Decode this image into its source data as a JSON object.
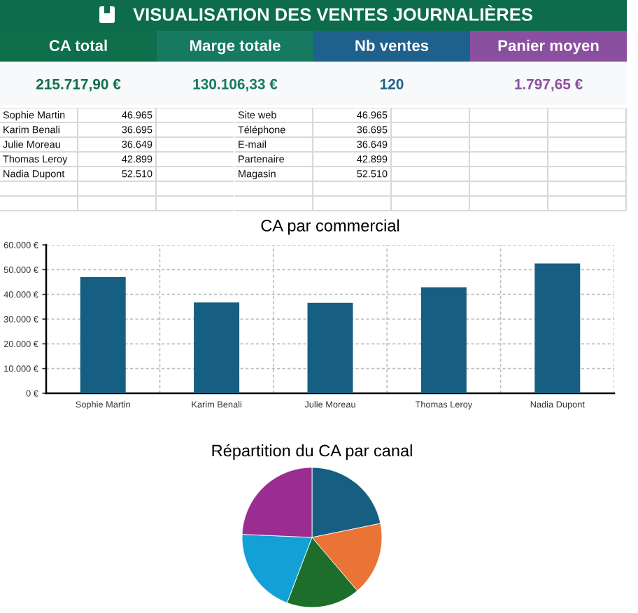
{
  "chart_data": [
    {
      "type": "other",
      "title": "VISUALISATION DES VENTES JOURNALIÈRES",
      "categories": [
        "CA total",
        "Marge totale",
        "Nb ventes",
        "Panier moyen"
      ],
      "value_labels": [
        "215.717,90 €",
        "130.106,33 €",
        "120",
        "1.797,65 €"
      ],
      "colors": [
        "#0f6e4b",
        "#157a60",
        "#1f618d",
        "#8b4fa0"
      ]
    },
    {
      "type": "other",
      "categories": [
        "Sophie Martin",
        "Karim Benali",
        "Julie Moreau",
        "Thomas Leroy",
        "Nadia Dupont"
      ],
      "value_labels": [
        "46.965",
        "36.695",
        "36.649",
        "42.899",
        "52.510"
      ]
    },
    {
      "type": "other",
      "categories": [
        "Site web",
        "Téléphone",
        "E-mail",
        "Partenaire",
        "Magasin"
      ],
      "value_labels": [
        "46.965",
        "36.695",
        "36.649",
        "42.899",
        "52.510"
      ]
    },
    {
      "type": "bar",
      "title": "CA par commercial",
      "categories": [
        "Sophie Martin",
        "Karim Benali",
        "Julie Moreau",
        "Thomas Leroy",
        "Nadia Dupont"
      ],
      "values": [
        47000,
        36700,
        36600,
        42900,
        52500
      ],
      "color": "#165f82",
      "ylim": [
        0,
        60000
      ],
      "yticks": [
        {
          "value": 0,
          "label": "0 €"
        },
        {
          "value": 10000,
          "label": "10.000 €"
        },
        {
          "value": 20000,
          "label": "20.000 €"
        },
        {
          "value": 30000,
          "label": "30.000 €"
        },
        {
          "value": 40000,
          "label": "40.000 €"
        },
        {
          "value": 50000,
          "label": "50.000 €"
        },
        {
          "value": 60000,
          "label": "60.000 €"
        }
      ],
      "grid": true
    },
    {
      "type": "pie",
      "title": "Répartition du CA par canal",
      "categories": [
        null,
        null,
        null,
        null,
        null
      ],
      "values": [
        21.8,
        17.0,
        17.0,
        19.9,
        24.3
      ],
      "colors": [
        "#165f82",
        "#e97436",
        "#1c6e2a",
        "#12a0d7",
        "#9b2d91"
      ]
    }
  ]
}
